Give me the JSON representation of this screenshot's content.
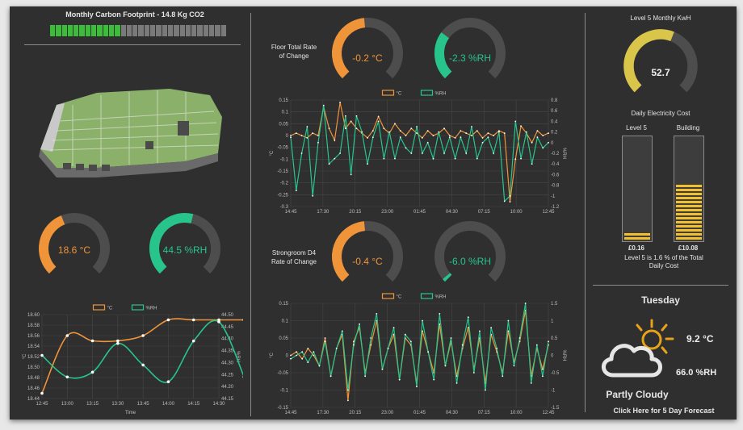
{
  "carbon": {
    "title": "Monthly Carbon Footprint - 14.8 Kg CO2",
    "fraction": 0.39
  },
  "left": {
    "temp_gauge": {
      "label": "18.6 °C",
      "fraction": 0.42,
      "color": "#f0943a"
    },
    "rh_gauge": {
      "label": "44.5 %RH",
      "fraction": 0.55,
      "color": "#27c58c"
    }
  },
  "floor": {
    "title_line1": "Floor Total Rate",
    "title_line2": "of Change",
    "temp_gauge": {
      "label": "-0.2 °C",
      "fraction": 0.48,
      "color": "#f0943a"
    },
    "rh_gauge": {
      "label": "-2.3 %RH",
      "fraction": 0.3,
      "color": "#27c58c"
    }
  },
  "strongroom": {
    "title_line1": "Strongroom D4",
    "title_line2": "Rate of Change",
    "temp_gauge": {
      "label": "-0.4 °C",
      "fraction": 0.48,
      "color": "#f0943a"
    },
    "rh_gauge": {
      "label": "-6.0 %RH",
      "fraction": 0.02,
      "color": "#27c58c"
    }
  },
  "energy": {
    "kwh_title": "Level 5 Monthly KwH",
    "kwh_gauge": {
      "label": "52.7",
      "fraction": 0.58,
      "color": "#d8c54a"
    },
    "cost_title": "Daily Electricity Cost",
    "bar_level5": {
      "label": "Level 5",
      "value_label": "£0.16",
      "fraction": 0.06
    },
    "bar_building": {
      "label": "Building",
      "value_label": "£10.08",
      "fraction": 0.55
    },
    "note_line1": "Level 5 is 1.6 % of the Total",
    "note_line2": "Daily Cost"
  },
  "weather": {
    "day": "Tuesday",
    "temp": "9.2 °C",
    "rh": "66.0 %RH",
    "condition": "Partly Cloudy",
    "forecast_link": "Click Here for 5 Day Forecast",
    "icon": "partly-cloudy-icon"
  },
  "colors": {
    "temp": "#f0943a",
    "rh": "#27c58c",
    "kwh": "#d8c54a",
    "bar_fill": "#f2c02c"
  },
  "chart_data": [
    {
      "type": "line",
      "name": "left-chart",
      "series": [
        {
          "name": "°C",
          "axis": "left",
          "color": "#f0943a",
          "x": [
            0,
            1,
            2,
            3,
            4,
            5,
            6,
            7,
            8
          ],
          "values": [
            18.45,
            18.56,
            18.55,
            18.55,
            18.56,
            18.59,
            18.59,
            18.59,
            18.59
          ]
        },
        {
          "name": "%RH",
          "axis": "right",
          "color": "#27c58c",
          "x": [
            0,
            1,
            2,
            3,
            4,
            5,
            6,
            7,
            8
          ],
          "values": [
            44.33,
            44.24,
            44.26,
            44.38,
            44.29,
            44.22,
            44.39,
            44.47,
            44.24
          ]
        }
      ],
      "xticks": [
        "12:45",
        "13:00",
        "13:15",
        "13:30",
        "13:45",
        "14:00",
        "14:15",
        "14:30"
      ],
      "ylim": [
        18.44,
        18.6
      ],
      "yticks": [
        "18.60",
        "18.58",
        "18.56",
        "18.54",
        "18.52",
        "18.50",
        "18.48",
        "18.46",
        "18.44"
      ],
      "y2lim": [
        44.15,
        44.5
      ],
      "y2ticks": [
        "44.50",
        "44.45",
        "44.40",
        "44.35",
        "44.30",
        "44.25",
        "44.20",
        "44.15"
      ],
      "xlabel": "Time",
      "ylabel": "°C",
      "y2label": "%RH",
      "legend": [
        "°C",
        "%RH"
      ],
      "grid": true
    },
    {
      "type": "line",
      "name": "floor-chart",
      "series": [
        {
          "name": "°C",
          "axis": "left",
          "color": "#f0943a",
          "values": [
            0,
            0.01,
            0,
            -0.01,
            0.01,
            0,
            0.12,
            0.03,
            -0.02,
            0.14,
            0.03,
            0.06,
            0.03,
            0.01,
            -0.01,
            0.02,
            0.08,
            0.03,
            0.01,
            0.05,
            0.02,
            0,
            0.03,
            0.01,
            -0.01,
            0.02,
            0,
            0.01,
            0.03,
            0,
            -0.01,
            0.02,
            0.01,
            0,
            0.02,
            -0.01,
            0.01,
            0,
            0.02,
            0.01,
            -0.28,
            -0.1,
            0.04,
            0.01,
            -0.03,
            0.02,
            0,
            0.01
          ]
        },
        {
          "name": "%RH",
          "axis": "right",
          "color": "#27c58c",
          "values": [
            0.1,
            -0.9,
            -0.2,
            0.3,
            -1.0,
            0,
            0.7,
            -0.4,
            -0.3,
            -0.2,
            0.5,
            -0.6,
            0.5,
            0.2,
            -0.4,
            0.1,
            0.4,
            -0.3,
            0.2,
            -0.3,
            0.1,
            -0.1,
            -0.2,
            0.3,
            -0.2,
            0,
            -0.3,
            0.2,
            -0.2,
            0.1,
            -0.3,
            0.1,
            -0.2,
            0.3,
            -0.3,
            0,
            0.1,
            -0.2,
            0.2,
            -1.1,
            -1.0,
            0.4,
            -0.3,
            0.2,
            -0.4,
            0.1,
            -0.1,
            0
          ]
        }
      ],
      "xticks": [
        "14:45",
        "17:30",
        "20:15",
        "23:00",
        "01:45",
        "04:30",
        "07:15",
        "10:00",
        "12:45"
      ],
      "ylim": [
        -0.3,
        0.15
      ],
      "yticks": [
        "0.15",
        "0.1",
        "0.05",
        "0",
        "-0.05",
        "-0.1",
        "-0.15",
        "-0.2",
        "-0.25",
        "-0.3"
      ],
      "y2lim": [
        -1.2,
        0.8
      ],
      "y2ticks": [
        "0.8",
        "0.6",
        "0.4",
        "0.2",
        "0",
        "-0.2",
        "-0.4",
        "-0.6",
        "-0.8",
        "-1",
        "-1.2"
      ],
      "ylabel": "°C",
      "y2label": "%RH",
      "legend": [
        "°C",
        "%RH"
      ],
      "grid": true
    },
    {
      "type": "line",
      "name": "strongroom-chart",
      "series": [
        {
          "name": "°C",
          "axis": "left",
          "color": "#f0943a",
          "values": [
            0,
            0.01,
            -0.01,
            0.02,
            0,
            -0.03,
            0.05,
            -0.06,
            0.02,
            0.06,
            -0.13,
            0.04,
            0.08,
            -0.05,
            0.03,
            0.1,
            -0.04,
            0.02,
            0.06,
            -0.07,
            0.05,
            0.03,
            -0.08,
            0.07,
            0.01,
            -0.05,
            0.09,
            -0.03,
            0.04,
            -0.06,
            0.02,
            0.08,
            -0.04,
            0.05,
            -0.08,
            0.06,
            0.01,
            -0.05,
            0.07,
            -0.02,
            0.04,
            0.13,
            -0.06,
            0.02,
            -0.04,
            0.03
          ]
        },
        {
          "name": "%RH",
          "axis": "right",
          "color": "#27c58c",
          "values": [
            -0.1,
            0,
            0.1,
            -0.2,
            0.1,
            -0.3,
            0.4,
            -0.6,
            0.2,
            0.7,
            -1.0,
            0.3,
            0.9,
            -0.6,
            0.5,
            1.2,
            -0.4,
            0.2,
            0.8,
            -0.7,
            0.6,
            0.4,
            -0.9,
            1.0,
            0.1,
            -0.7,
            1.2,
            -0.3,
            0.5,
            -0.8,
            0.3,
            1.1,
            -0.5,
            0.7,
            -1.0,
            0.8,
            0.2,
            -0.6,
            1.0,
            -0.3,
            0.5,
            1.5,
            -0.8,
            0.3,
            -0.6,
            0.4
          ]
        }
      ],
      "xticks": [
        "14:45",
        "17:30",
        "20:15",
        "23:00",
        "01:45",
        "04:30",
        "07:15",
        "10:00",
        "12:45"
      ],
      "ylim": [
        -0.15,
        0.15
      ],
      "yticks": [
        "0.15",
        "0.1",
        "0.05",
        "0",
        "-0.05",
        "-0.1",
        "-0.15"
      ],
      "y2lim": [
        -1.5,
        1.5
      ],
      "y2ticks": [
        "1.5",
        "1",
        "0.5",
        "0",
        "-0.5",
        "-1",
        "-1.5"
      ],
      "ylabel": "°C",
      "y2label": "%RH",
      "legend": [
        "°C",
        "%RH"
      ],
      "grid": true
    }
  ]
}
